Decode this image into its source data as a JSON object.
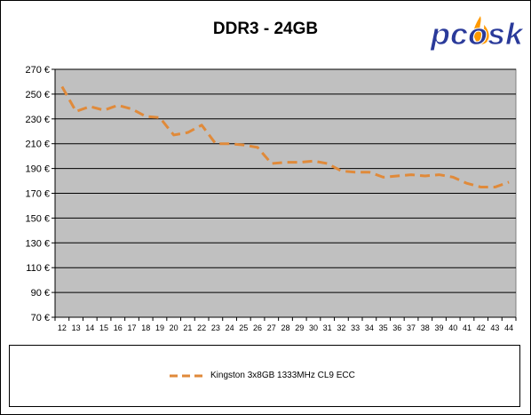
{
  "logo_text": "pcosk",
  "colors": {
    "plot_background": "#c0c0c0",
    "gridline": "#000000",
    "series_line": "#e08a3a",
    "logo_text": "#2a3a9a",
    "logo_flame": "#ff9900"
  },
  "chart_data": {
    "type": "line",
    "title": "DDR3 - 24GB",
    "xlabel": "",
    "ylabel": "",
    "x": [
      "12",
      "13",
      "14",
      "15",
      "16",
      "17",
      "18",
      "19",
      "20",
      "21",
      "22",
      "23",
      "24",
      "25",
      "26",
      "27",
      "28",
      "29",
      "30",
      "31",
      "32",
      "33",
      "34",
      "35",
      "36",
      "37",
      "38",
      "39",
      "40",
      "41",
      "42",
      "43",
      "44"
    ],
    "ylim": [
      70,
      270
    ],
    "yticks": [
      70,
      90,
      110,
      130,
      150,
      170,
      190,
      210,
      230,
      250,
      270
    ],
    "ytick_labels": [
      "70 €",
      "90 €",
      "110 €",
      "130 €",
      "150 €",
      "170 €",
      "190 €",
      "210 €",
      "230 €",
      "250 €",
      "270 €"
    ],
    "grid": "horizontal",
    "legend_position": "bottom",
    "series": [
      {
        "name": "Kingston 3x8GB 1333MHz CL9 ECC",
        "line_style": "dashed",
        "values": [
          256,
          236,
          240,
          237,
          241,
          238,
          232,
          231,
          217,
          219,
          225,
          210,
          210,
          209,
          207,
          194,
          195,
          195,
          196,
          194,
          188,
          187,
          187,
          183,
          184,
          185,
          184,
          185,
          183,
          178,
          175,
          175,
          179
        ]
      }
    ]
  }
}
